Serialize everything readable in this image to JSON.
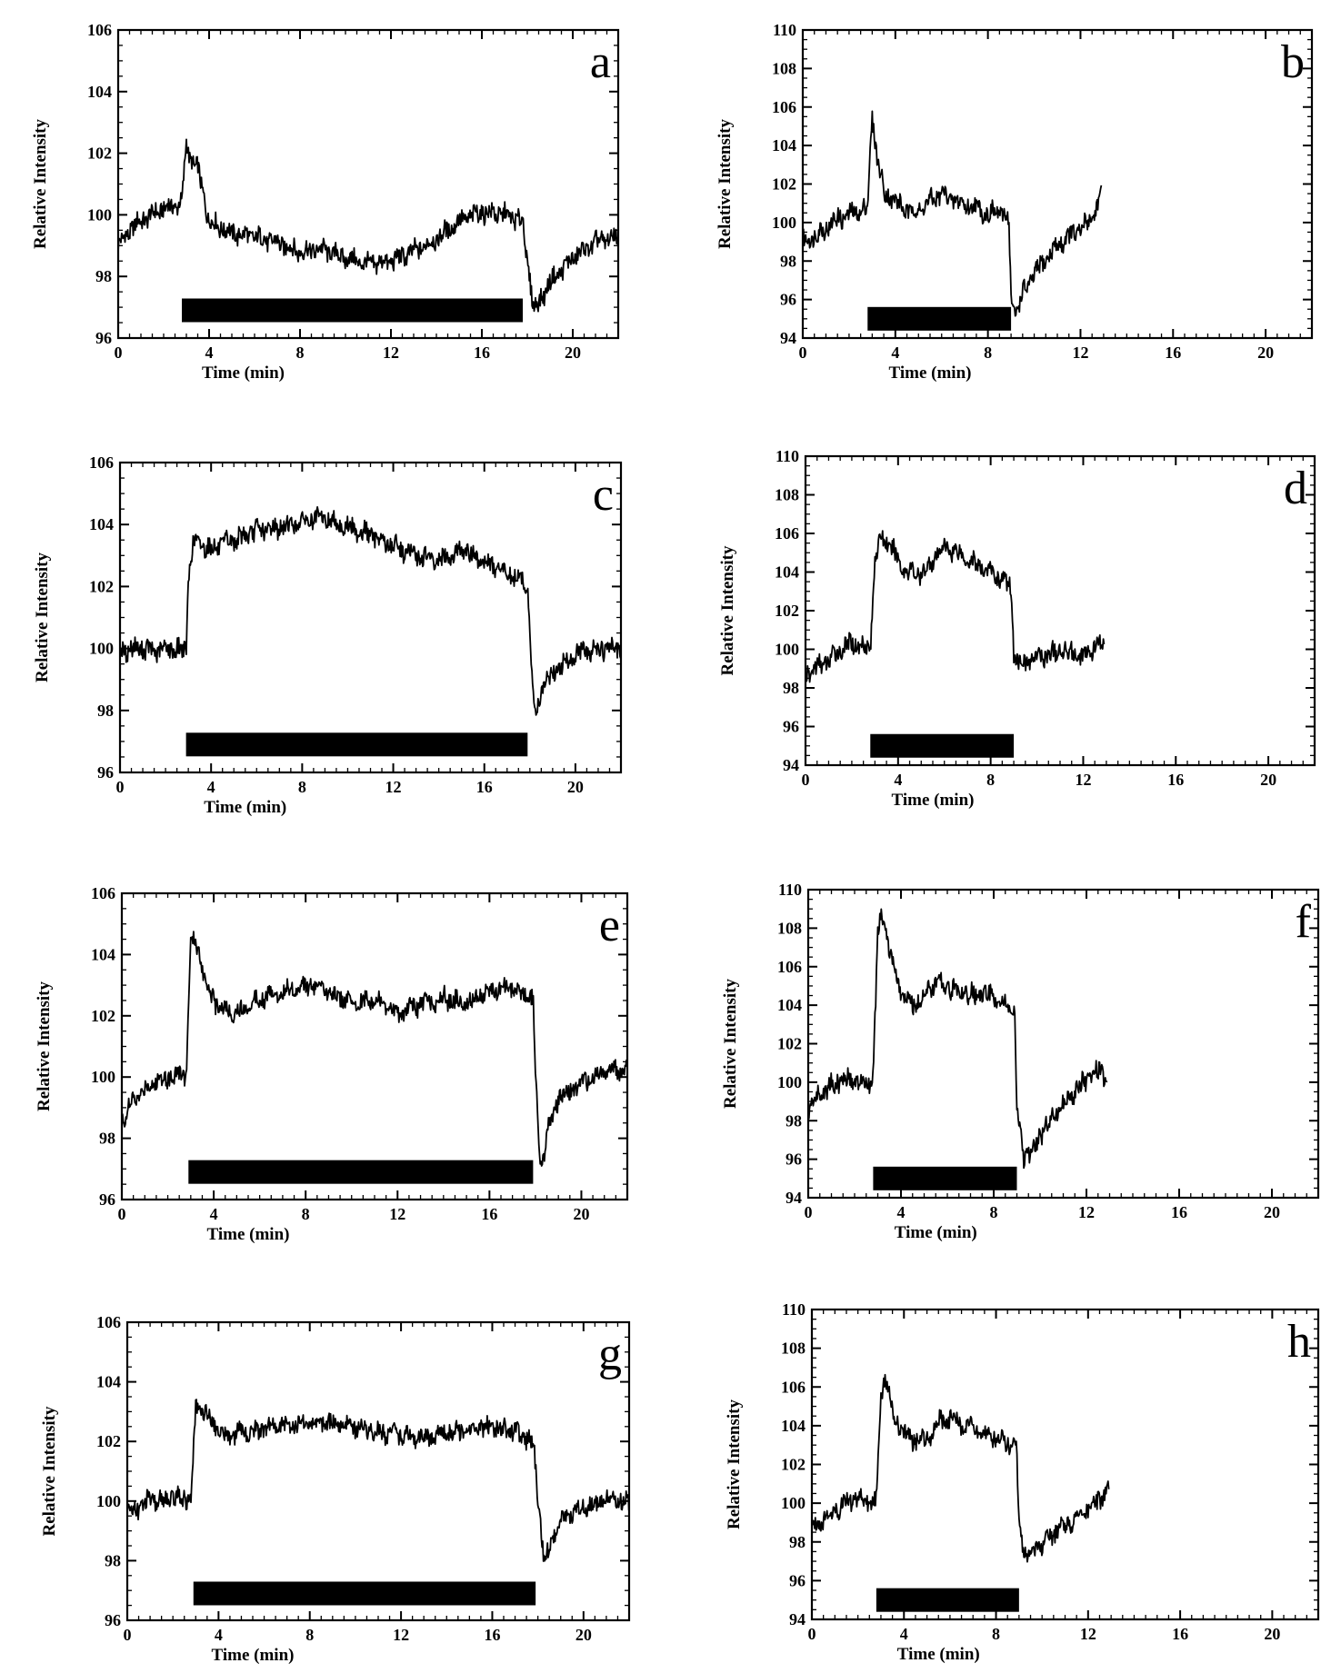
{
  "chart_data": [
    {
      "type": "line",
      "panel": "a",
      "letter": "a",
      "xlabel": "Time (min)",
      "ylabel": "Relative Intensity",
      "xlim": [
        0,
        22
      ],
      "ylim": [
        96,
        106
      ],
      "xticks": [
        0,
        4,
        8,
        12,
        16,
        20
      ],
      "yticks": [
        96,
        98,
        100,
        102,
        104,
        106
      ],
      "stimulus_bar": [
        2.8,
        17.8
      ],
      "bar_level": 96.9,
      "series": [
        {
          "color": "#000000",
          "x": [
            0,
            0.5,
            1,
            1.5,
            2,
            2.5,
            2.8,
            3,
            3.2,
            3.5,
            4,
            4.5,
            5,
            6,
            7,
            8,
            9,
            10,
            11,
            12,
            13,
            14,
            15,
            16,
            17,
            17.8,
            18,
            18.3,
            19,
            20,
            21,
            22
          ],
          "y": [
            99,
            99.5,
            99.8,
            100,
            100.2,
            100.3,
            100.4,
            102.3,
            101.8,
            101.5,
            99.8,
            99.6,
            99.4,
            99.3,
            99.1,
            98.8,
            98.9,
            98.6,
            98.4,
            98.5,
            98.8,
            99.2,
            99.8,
            100.1,
            100,
            99.8,
            98.5,
            96.9,
            97.8,
            98.6,
            99.1,
            99.3
          ]
        }
      ]
    },
    {
      "type": "line",
      "panel": "b",
      "letter": "b",
      "xlabel": "Time (min)",
      "ylabel": "Relative Intensity",
      "xlim": [
        0,
        22
      ],
      "ylim": [
        94,
        110
      ],
      "xticks": [
        0,
        4,
        8,
        12,
        16,
        20
      ],
      "yticks": [
        94,
        96,
        98,
        100,
        102,
        104,
        106,
        108,
        110
      ],
      "stimulus_bar": [
        2.8,
        9
      ],
      "bar_level": 95,
      "series": [
        {
          "color": "#000000",
          "x": [
            0,
            0.5,
            1,
            1.5,
            2,
            2.5,
            2.8,
            3,
            3.2,
            3.5,
            4,
            4.5,
            5,
            5.5,
            6,
            6.5,
            7,
            7.5,
            8,
            8.5,
            8.9,
            9,
            9.2,
            9.5,
            10,
            10.5,
            11,
            11.5,
            12,
            12.5,
            12.9
          ],
          "y": [
            99,
            99.3,
            99.7,
            100.2,
            100.4,
            100.6,
            100.8,
            105.6,
            103.5,
            101.6,
            101.1,
            100.6,
            100.6,
            101.1,
            101.5,
            101.2,
            100.9,
            100.8,
            100.4,
            100.6,
            100.2,
            96,
            95.3,
            96.3,
            97.3,
            98.1,
            98.8,
            99.3,
            99.6,
            100.3,
            101.4
          ]
        }
      ]
    },
    {
      "type": "line",
      "panel": "c",
      "letter": "c",
      "xlabel": "Time (min)",
      "ylabel": "Relative Intensity",
      "xlim": [
        0,
        22
      ],
      "ylim": [
        96,
        106
      ],
      "xticks": [
        0,
        4,
        8,
        12,
        16,
        20
      ],
      "yticks": [
        96,
        98,
        100,
        102,
        104,
        106
      ],
      "stimulus_bar": [
        2.9,
        17.9
      ],
      "bar_level": 96.9,
      "series": [
        {
          "color": "#000000",
          "x": [
            0,
            0.5,
            1,
            1.5,
            2,
            2.5,
            2.9,
            3,
            3.2,
            3.5,
            4,
            5,
            6,
            7,
            8,
            9,
            10,
            11,
            12,
            13,
            14,
            15,
            16,
            17,
            17.9,
            18,
            18.2,
            18.6,
            19,
            20,
            21,
            22
          ],
          "y": [
            99.9,
            100,
            100,
            99.9,
            100,
            100,
            99.9,
            102.2,
            103.4,
            103.4,
            103.2,
            103.5,
            103.8,
            103.9,
            104.1,
            104.2,
            103.9,
            103.7,
            103.3,
            103,
            102.8,
            103.2,
            102.8,
            102.4,
            102.1,
            100.3,
            97.9,
            98.8,
            99.2,
            99.8,
            100,
            100
          ]
        }
      ]
    },
    {
      "type": "line",
      "panel": "d",
      "letter": "d",
      "xlabel": "Time (min)",
      "ylabel": "Relative Intensity",
      "xlim": [
        0,
        22
      ],
      "ylim": [
        94,
        110
      ],
      "xticks": [
        0,
        4,
        8,
        12,
        16,
        20
      ],
      "yticks": [
        94,
        96,
        98,
        100,
        102,
        104,
        106,
        108,
        110
      ],
      "stimulus_bar": [
        2.8,
        9
      ],
      "bar_level": 95,
      "series": [
        {
          "color": "#000000",
          "x": [
            0,
            0.5,
            1,
            1.5,
            2,
            2.5,
            2.8,
            3,
            3.3,
            3.8,
            4.2,
            5,
            5.5,
            6,
            6.5,
            7,
            7.5,
            8,
            8.5,
            8.9,
            9,
            9.2,
            9.6,
            10,
            10.5,
            11,
            11.5,
            12,
            12.5,
            12.9
          ],
          "y": [
            98.6,
            99.1,
            99.4,
            100,
            100.3,
            100.2,
            100,
            104.8,
            105.8,
            105.1,
            104.2,
            103.8,
            104.6,
            105.3,
            105.1,
            104.7,
            104.3,
            104,
            103.6,
            103.2,
            99.8,
            99.3,
            99.4,
            99.6,
            99.7,
            99.9,
            99.9,
            99.6,
            100.1,
            100.3
          ]
        }
      ]
    },
    {
      "type": "line",
      "panel": "e",
      "letter": "e",
      "xlabel": "Time (min)",
      "ylabel": "Relative Intensity",
      "xlim": [
        0,
        22
      ],
      "ylim": [
        96,
        106
      ],
      "xticks": [
        0,
        4,
        8,
        12,
        16,
        20
      ],
      "yticks": [
        96,
        98,
        100,
        102,
        104,
        106
      ],
      "stimulus_bar": [
        2.9,
        17.9
      ],
      "bar_level": 96.9,
      "series": [
        {
          "color": "#000000",
          "x": [
            0,
            0.5,
            1,
            1.5,
            2,
            2.5,
            2.8,
            3,
            3.3,
            3.7,
            4,
            4.5,
            5,
            6,
            7,
            8,
            9,
            10,
            11,
            12,
            13,
            14,
            15,
            16,
            17,
            17.9,
            18,
            18.2,
            18.6,
            19,
            20,
            21,
            22
          ],
          "y": [
            98.6,
            99.2,
            99.6,
            99.9,
            100,
            100.1,
            100.1,
            104.4,
            104.3,
            103,
            102.5,
            102.2,
            102.1,
            102.6,
            102.8,
            103,
            102.8,
            102.4,
            102.5,
            102.1,
            102.4,
            102.6,
            102.4,
            102.8,
            102.9,
            102.6,
            100.2,
            97,
            98.4,
            99.3,
            99.8,
            100.2,
            100.2
          ]
        }
      ]
    },
    {
      "type": "line",
      "panel": "f",
      "letter": "f",
      "xlabel": "Time (min)",
      "ylabel": "Relative Intensity",
      "xlim": [
        0,
        22
      ],
      "ylim": [
        94,
        110
      ],
      "xticks": [
        0,
        4,
        8,
        12,
        16,
        20
      ],
      "yticks": [
        94,
        96,
        98,
        100,
        102,
        104,
        106,
        108,
        110
      ],
      "stimulus_bar": [
        2.8,
        9
      ],
      "bar_level": 95,
      "series": [
        {
          "color": "#000000",
          "x": [
            0,
            0.5,
            1,
            1.5,
            2,
            2.5,
            2.8,
            3,
            3.2,
            3.6,
            4,
            4.5,
            5,
            5.5,
            6,
            6.5,
            7,
            7.5,
            8,
            8.5,
            8.9,
            9,
            9.3,
            9.7,
            10,
            10.5,
            11,
            11.5,
            12,
            12.5,
            12.9
          ],
          "y": [
            98.6,
            99.4,
            99.8,
            100.2,
            100.1,
            99.8,
            100.2,
            107.6,
            108.8,
            106.3,
            104.6,
            104,
            104.5,
            105.2,
            105,
            104.7,
            104.5,
            104.6,
            104.4,
            104.1,
            103.6,
            98.5,
            96.1,
            96.4,
            97.3,
            98.1,
            98.9,
            99.5,
            100.1,
            100.6,
            100.2
          ]
        }
      ]
    },
    {
      "type": "line",
      "panel": "g",
      "letter": "g",
      "xlabel": "Time (min)",
      "ylabel": "Relative Intensity",
      "xlim": [
        0,
        22
      ],
      "ylim": [
        96,
        106
      ],
      "xticks": [
        0,
        4,
        8,
        12,
        16,
        20
      ],
      "yticks": [
        96,
        98,
        100,
        102,
        104,
        106
      ],
      "stimulus_bar": [
        2.9,
        17.9
      ],
      "bar_level": 96.9,
      "series": [
        {
          "color": "#000000",
          "x": [
            0,
            0.5,
            1,
            1.5,
            2,
            2.5,
            2.8,
            3,
            3.3,
            3.8,
            4.2,
            5,
            6,
            7,
            8,
            9,
            10,
            11,
            12,
            13,
            14,
            15,
            16,
            17,
            17.8,
            18,
            18.3,
            18.7,
            19,
            20,
            21,
            22
          ],
          "y": [
            99.6,
            99.8,
            100,
            100,
            100.1,
            100.1,
            100.1,
            103.1,
            103.1,
            102.6,
            102.2,
            102.3,
            102.4,
            102.6,
            102.6,
            102.6,
            102.5,
            102.3,
            102.2,
            102.1,
            102.3,
            102.4,
            102.5,
            102.3,
            102,
            100.1,
            97.9,
            98.9,
            99.4,
            99.8,
            100,
            100
          ]
        }
      ]
    },
    {
      "type": "line",
      "panel": "h",
      "letter": "h",
      "xlabel": "Time (min)",
      "ylabel": "Relative Intensity",
      "xlim": [
        0,
        22
      ],
      "ylim": [
        94,
        110
      ],
      "xticks": [
        0,
        4,
        8,
        12,
        16,
        20
      ],
      "yticks": [
        94,
        96,
        98,
        100,
        102,
        104,
        106,
        108,
        110
      ],
      "stimulus_bar": [
        2.8,
        9
      ],
      "bar_level": 95,
      "series": [
        {
          "color": "#000000",
          "x": [
            0,
            0.5,
            1,
            1.5,
            2,
            2.5,
            2.8,
            3,
            3.2,
            3.6,
            4,
            4.5,
            5,
            5.5,
            6,
            6.5,
            7,
            7.5,
            8,
            8.5,
            8.9,
            9,
            9.3,
            9.7,
            10,
            10.5,
            11,
            11.5,
            12,
            12.5,
            12.9
          ],
          "y": [
            98.8,
            99.2,
            99.6,
            100.1,
            100.3,
            100,
            100.1,
            105.8,
            106.5,
            104.3,
            103.6,
            103.2,
            103.4,
            104.2,
            104.4,
            104.1,
            103.8,
            103.6,
            103.3,
            103.1,
            102.9,
            98.7,
            97.3,
            97.6,
            97.9,
            98.4,
            98.8,
            99.3,
            99.6,
            100.2,
            100.7
          ]
        }
      ]
    }
  ]
}
